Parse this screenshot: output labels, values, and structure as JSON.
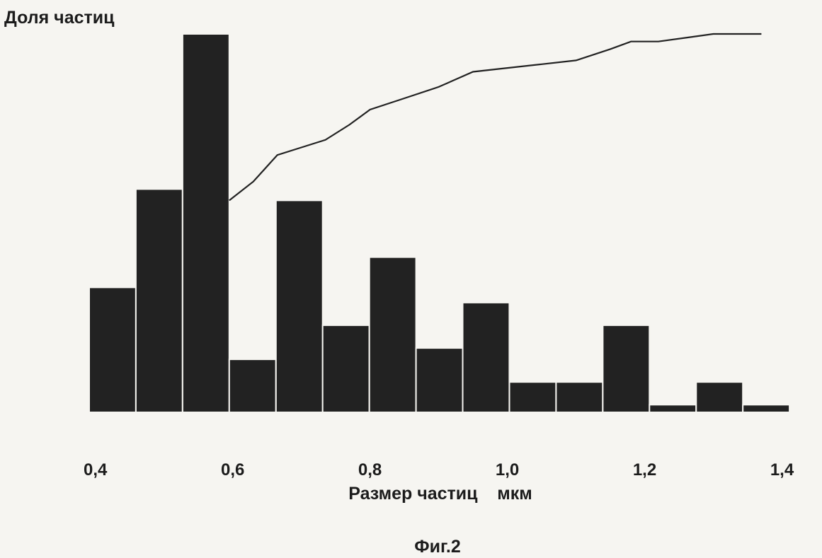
{
  "chart_data": {
    "type": "bar",
    "ylabel": "Доля частиц",
    "xlabel": "Размер частиц    мкм",
    "xticks": [
      "0,4",
      "0,6",
      "0,8",
      "1,0",
      "1,2",
      "1,4"
    ],
    "xtick_values": [
      0.4,
      0.6,
      0.8,
      1.0,
      1.2,
      1.4
    ],
    "xlim": [
      0.39,
      1.45
    ],
    "ylim": [
      0,
      100
    ],
    "bin_width": 0.068,
    "bins": [
      {
        "x": 0.391,
        "value": 33
      },
      {
        "x": 0.459,
        "value": 59
      },
      {
        "x": 0.527,
        "value": 100
      },
      {
        "x": 0.595,
        "value": 14
      },
      {
        "x": 0.663,
        "value": 56
      },
      {
        "x": 0.731,
        "value": 23
      },
      {
        "x": 0.799,
        "value": 41
      },
      {
        "x": 0.867,
        "value": 17
      },
      {
        "x": 0.935,
        "value": 29
      },
      {
        "x": 1.003,
        "value": 8
      },
      {
        "x": 1.071,
        "value": 8
      },
      {
        "x": 1.139,
        "value": 23
      },
      {
        "x": 1.207,
        "value": 2
      },
      {
        "x": 1.275,
        "value": 8
      },
      {
        "x": 1.343,
        "value": 2
      }
    ],
    "cumulative_line": {
      "x": [
        0.595,
        0.63,
        0.665,
        0.7,
        0.735,
        0.77,
        0.8,
        0.85,
        0.9,
        0.95,
        1.0,
        1.05,
        1.1,
        1.15,
        1.18,
        1.22,
        1.26,
        1.3,
        1.33,
        1.37
      ],
      "y": [
        56,
        61,
        68,
        70,
        72,
        76,
        80,
        83,
        86,
        90,
        91,
        92,
        93,
        96,
        98,
        98,
        99,
        100,
        100,
        100
      ]
    }
  },
  "caption": "Фиг.2"
}
